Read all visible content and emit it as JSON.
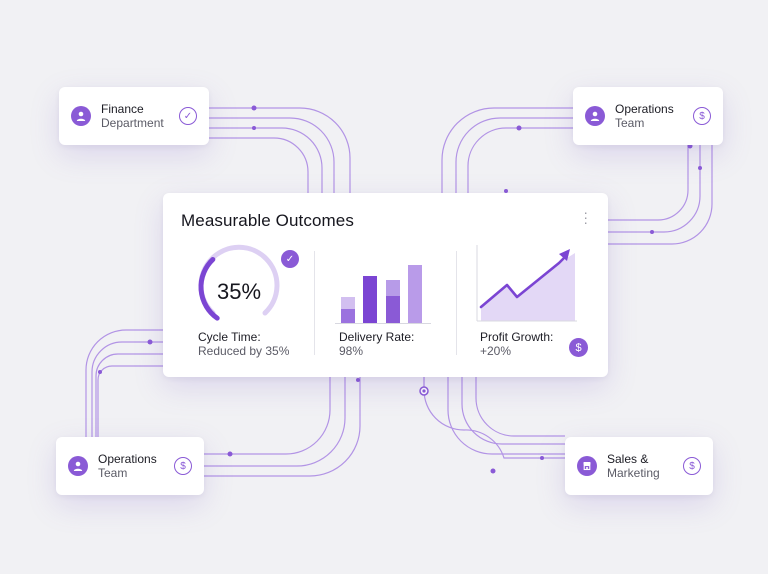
{
  "accent_color": "#8a5ad6",
  "accent_light": "#d9c9f2",
  "nodes": {
    "finance": {
      "line1": "Finance",
      "line2": "Department",
      "avatar_icon": "user-icon",
      "status_icon": "check-circle-icon"
    },
    "operations_top": {
      "line1": "Operations",
      "line2": "Team",
      "avatar_icon": "user-icon",
      "status_icon": "dollar-circle-icon"
    },
    "operations_bottom": {
      "line1": "Operations",
      "line2": "Team",
      "avatar_icon": "user-icon",
      "status_icon": "dollar-circle-icon"
    },
    "sales": {
      "line1": "Sales &",
      "line2": "Marketing",
      "avatar_icon": "shop-icon",
      "status_icon": "dollar-circle-icon"
    }
  },
  "main_card": {
    "title": "Measurable Outcomes",
    "menu_icon": "kebab-menu-icon",
    "metrics": {
      "cycle_time": {
        "gauge_value": "35%",
        "gauge_fraction": 0.35,
        "label": "Cycle Time:",
        "sub": "Reduced by 35%",
        "badge_icon": "check-icon"
      },
      "delivery_rate": {
        "label": "Delivery Rate:",
        "sub": "98%"
      },
      "profit_growth": {
        "label": "Profit Growth:",
        "sub": "+20%",
        "badge_icon": "dollar-icon"
      }
    }
  },
  "glyphs": {
    "check": "✓",
    "dollar": "$",
    "kebab": "⋮"
  }
}
